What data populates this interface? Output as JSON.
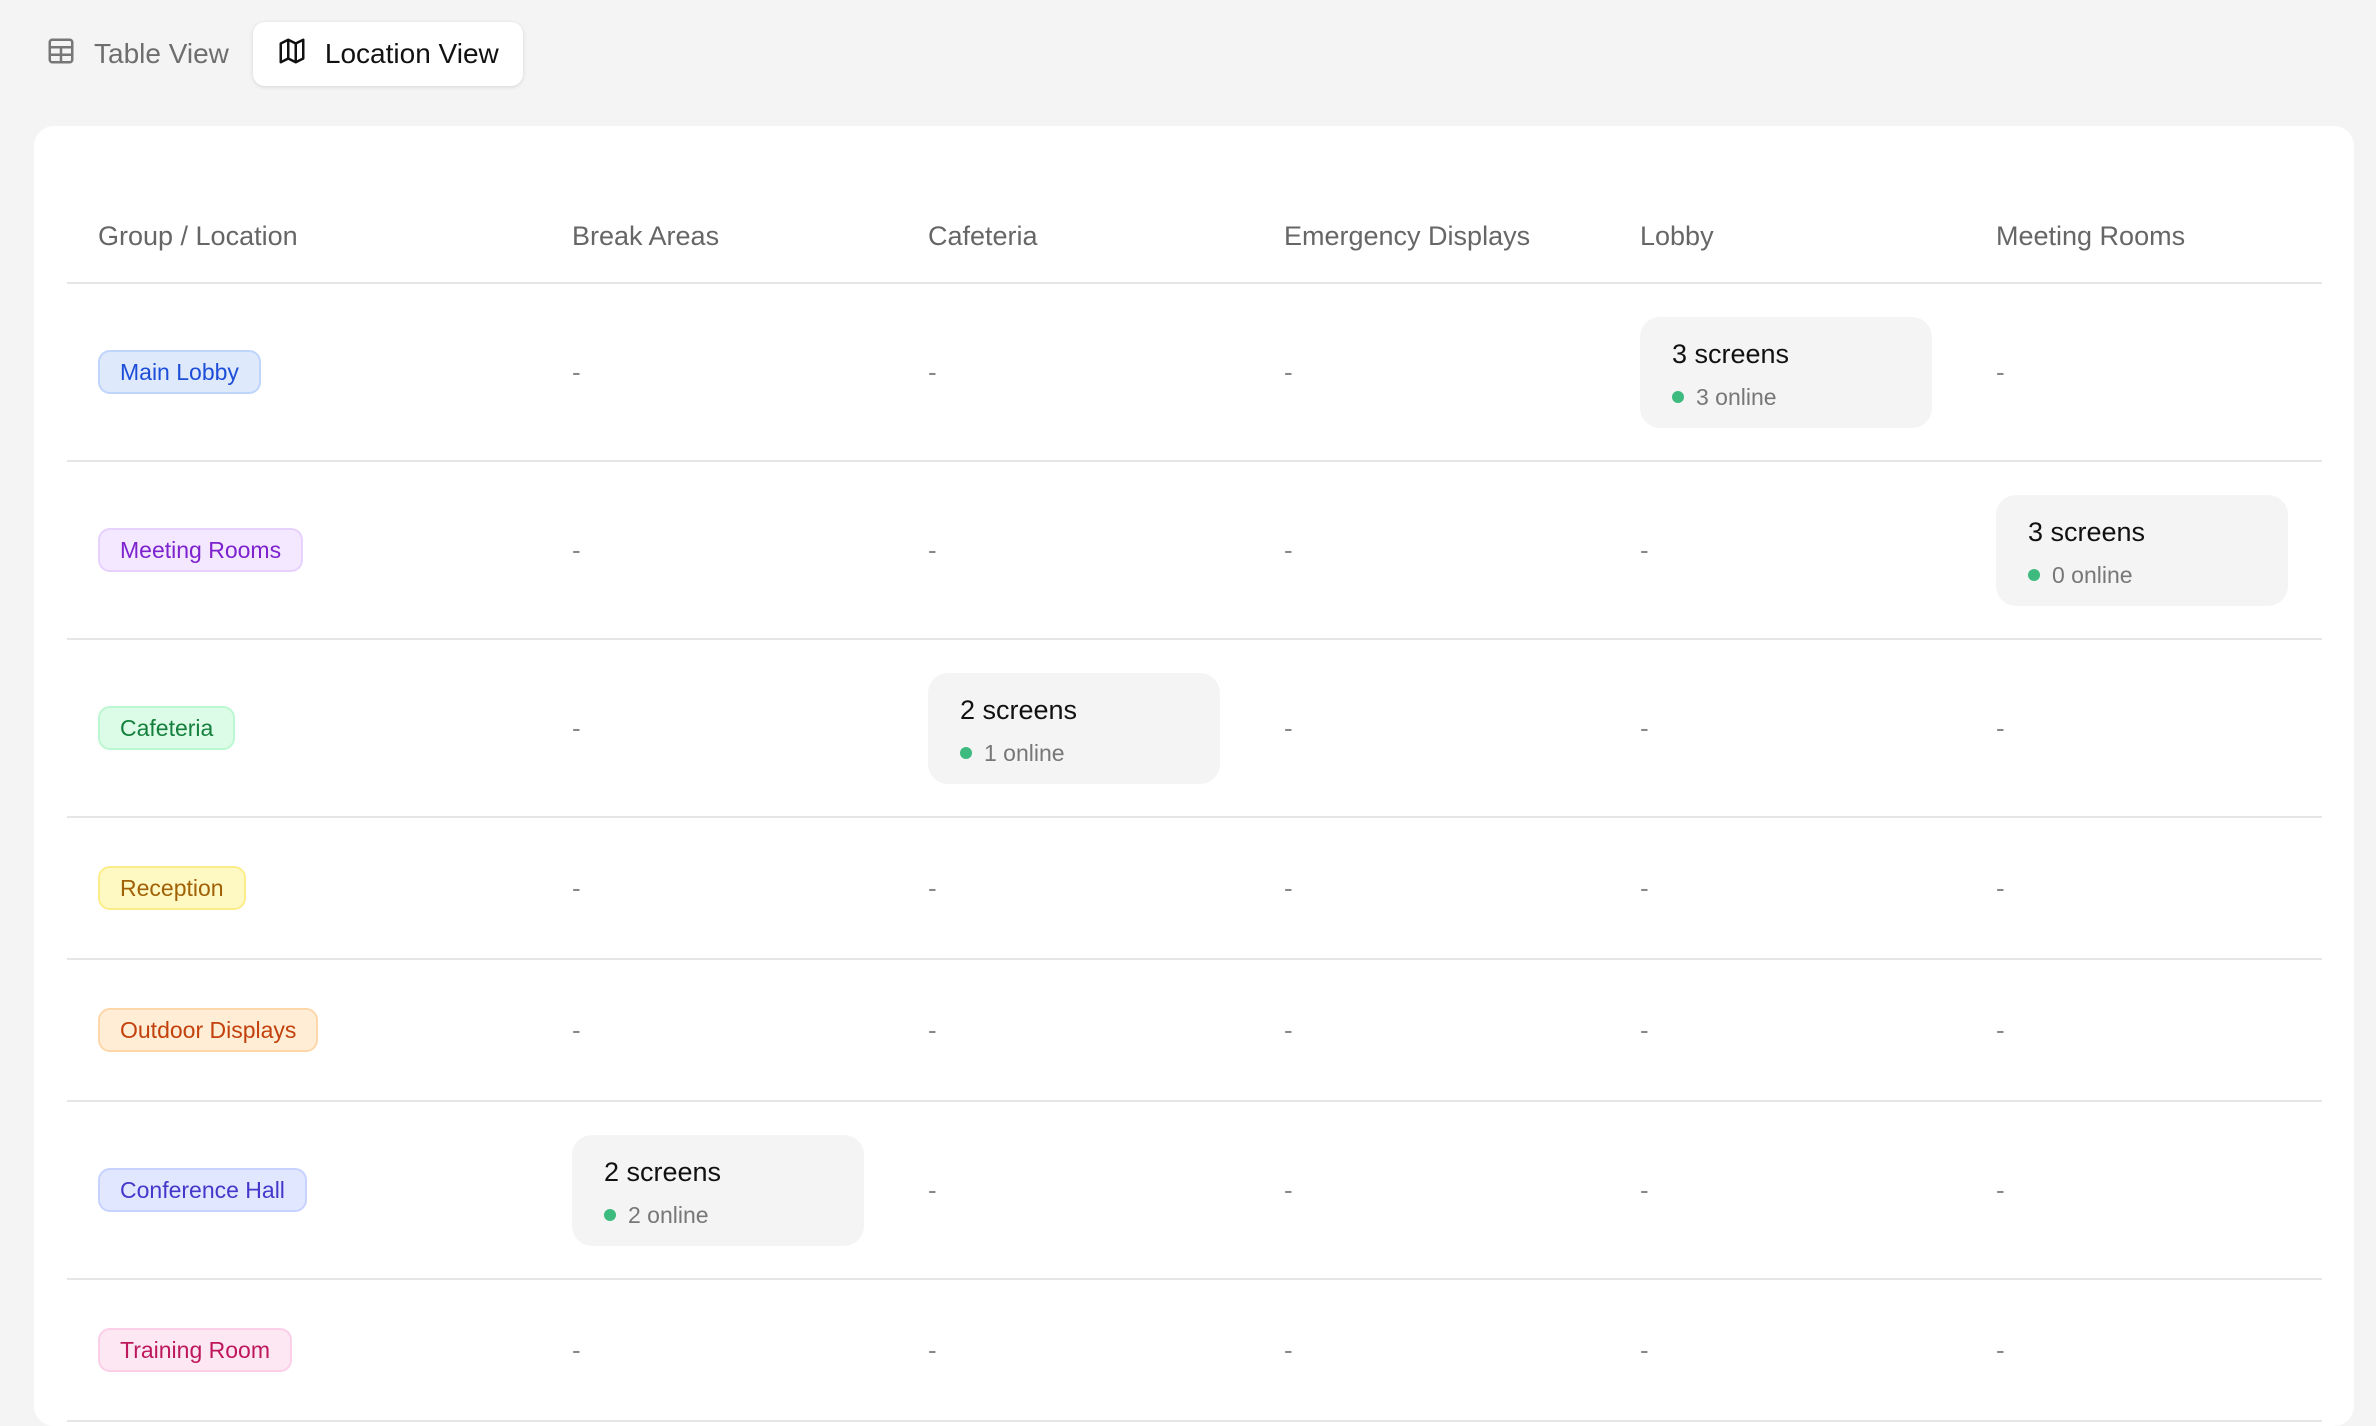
{
  "tabs": [
    {
      "label": "Table View",
      "icon": "table-grid-icon",
      "active": false
    },
    {
      "label": "Location View",
      "icon": "map-icon",
      "active": true
    }
  ],
  "table": {
    "headers": [
      "Group / Location",
      "Break Areas",
      "Cafeteria",
      "Emergency Displays",
      "Lobby",
      "Meeting Rooms"
    ],
    "empty": "-",
    "rows": [
      {
        "group": "Main Lobby",
        "colors": {
          "bg": "#dfe9fc",
          "border": "#bfd5fb",
          "text": "#1d4ed8"
        },
        "cells": [
          null,
          null,
          null,
          {
            "screens": "3 screens",
            "online": "3 online"
          },
          null
        ]
      },
      {
        "group": "Meeting Rooms",
        "colors": {
          "bg": "#f3e8ff",
          "border": "#e6d2fd",
          "text": "#7e22ce"
        },
        "cells": [
          null,
          null,
          null,
          null,
          {
            "screens": "3 screens",
            "online": "0 online"
          }
        ]
      },
      {
        "group": "Cafeteria",
        "colors": {
          "bg": "#dcfce7",
          "border": "#bbf7d0",
          "text": "#15803d"
        },
        "cells": [
          null,
          {
            "screens": "2 screens",
            "online": "1 online"
          },
          null,
          null,
          null
        ]
      },
      {
        "group": "Reception",
        "colors": {
          "bg": "#fef9c3",
          "border": "#fcec8a",
          "text": "#a16207"
        },
        "cells": [
          null,
          null,
          null,
          null,
          null
        ]
      },
      {
        "group": "Outdoor Displays",
        "colors": {
          "bg": "#ffedd5",
          "border": "#fed7aa",
          "text": "#c2410c"
        },
        "cells": [
          null,
          null,
          null,
          null,
          null
        ]
      },
      {
        "group": "Conference Hall",
        "colors": {
          "bg": "#e0e7ff",
          "border": "#c7d2fe",
          "text": "#4338ca"
        },
        "cells": [
          {
            "screens": "2 screens",
            "online": "2 online"
          },
          null,
          null,
          null,
          null
        ]
      },
      {
        "group": "Training Room",
        "colors": {
          "bg": "#fce7f3",
          "border": "#fbcfe8",
          "text": "#be185d"
        },
        "cells": [
          null,
          null,
          null,
          null,
          null
        ]
      }
    ]
  },
  "online_dot_color": "#3dbb7e"
}
